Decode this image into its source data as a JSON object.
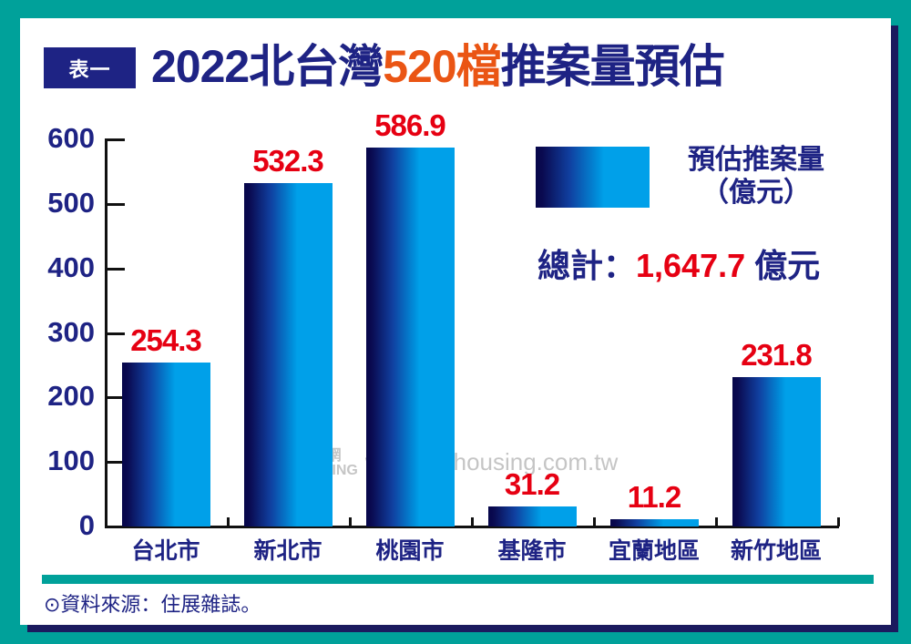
{
  "header": {
    "badge": "表一",
    "title_prefix": "2022北台灣",
    "title_highlight": "520檔",
    "title_suffix": "推案量預估"
  },
  "legend": {
    "label_line1": "預估推案量",
    "label_line2": "（億元）"
  },
  "total": {
    "label": "總計：",
    "value": "1,647.7",
    "unit": " 億元"
  },
  "watermark": {
    "logo_line1": "住展 房屋網",
    "logo_line2": "MY HOUSING",
    "url": "www.myhousing.com.tw"
  },
  "footer": {
    "source": "⊙資料來源：住展雜誌。"
  },
  "colors": {
    "frame": "#00a19a",
    "navy": "#1e2384",
    "value_red": "#e60012",
    "title_orange": "#ea5514",
    "bar_dark": "#06064a",
    "bar_light": "#00a0e9"
  },
  "chart_data": {
    "type": "bar",
    "title": "2022北台灣520檔推案量預估",
    "categories": [
      "台北市",
      "新北市",
      "桃園市",
      "基隆市",
      "宜蘭地區",
      "新竹地區"
    ],
    "values": [
      254.3,
      532.3,
      586.9,
      31.2,
      11.2,
      231.8
    ],
    "value_labels": [
      "254.3",
      "532.3",
      "586.9",
      "31.2",
      "11.2",
      "231.8"
    ],
    "series": [
      {
        "name": "預估推案量（億元）",
        "values": [
          254.3,
          532.3,
          586.9,
          31.2,
          11.2,
          231.8
        ]
      }
    ],
    "xlabel": "",
    "ylabel": "",
    "ylim": [
      0,
      600
    ],
    "yticks": [
      0,
      100,
      200,
      300,
      400,
      500,
      600
    ],
    "grid": false,
    "legend_position": "upper right",
    "annotations": [
      "總計：1,647.7 億元"
    ]
  }
}
